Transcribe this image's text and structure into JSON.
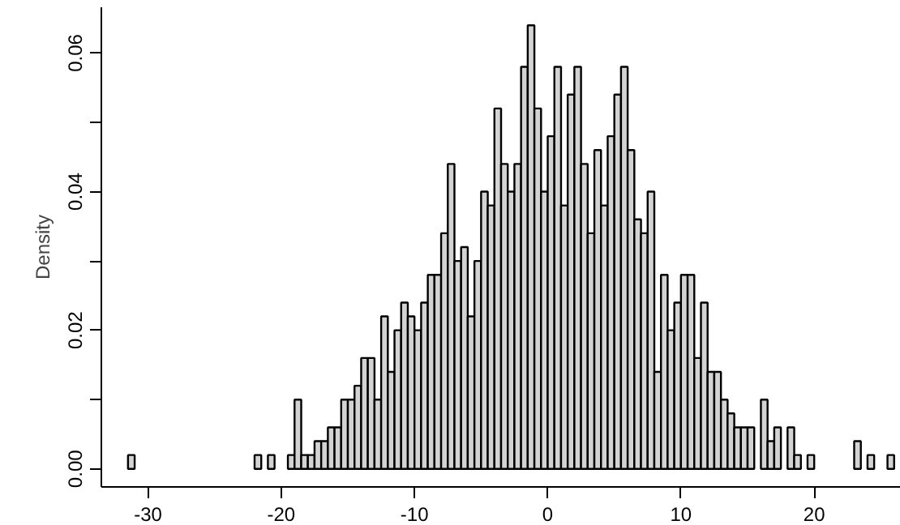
{
  "chart_data": {
    "type": "histogram",
    "ylabel": "Density",
    "color": "#d3d3d3",
    "grid": false,
    "bins": [
      -31.5,
      -31,
      -30.5,
      -30,
      -29.5,
      -29,
      -28.5,
      -28,
      -27.5,
      -27,
      -26.5,
      -26,
      -25.5,
      -25,
      -24.5,
      -24,
      -23.5,
      -23,
      -22.5,
      -22,
      -21.5,
      -21,
      -20.5,
      -20,
      -19.5,
      -19,
      -18.5,
      -18,
      -17.5,
      -17,
      -16.5,
      -16,
      -15.5,
      -15,
      -14.5,
      -14,
      -13.5,
      -13,
      -12.5,
      -12,
      -11.5,
      -11,
      -10.5,
      -10,
      -9.5,
      -9,
      -8.5,
      -8,
      -7.5,
      -7,
      -6.5,
      -6,
      -5.5,
      -5,
      -4.5,
      -4,
      -3.5,
      -3,
      -2.5,
      -2,
      -1.5,
      -1,
      -0.5,
      0,
      0.5,
      1,
      1.5,
      2,
      2.5,
      3,
      3.5,
      4,
      4.5,
      5,
      5.5,
      6,
      6.5,
      7,
      7.5,
      8,
      8.5,
      9,
      9.5,
      10,
      10.5,
      11,
      11.5,
      12,
      12.5,
      13,
      13.5,
      14,
      14.5,
      15,
      15.5,
      16,
      16.5,
      17,
      17.5,
      18,
      18.5,
      19,
      19.5,
      20,
      20.5,
      21,
      21.5,
      22,
      22.5,
      23,
      23.5,
      24,
      24.5,
      25,
      25.5,
      26
    ],
    "values": [
      0.002,
      0,
      0,
      0,
      0,
      0,
      0,
      0,
      0,
      0,
      0,
      0,
      0,
      0,
      0,
      0,
      0,
      0,
      0,
      0.002,
      0,
      0.002,
      0,
      0,
      0.002,
      0.01,
      0.002,
      0.002,
      0.004,
      0.004,
      0.006,
      0.006,
      0.01,
      0.01,
      0.012,
      0.016,
      0.016,
      0.01,
      0.022,
      0.014,
      0.02,
      0.024,
      0.022,
      0.02,
      0.024,
      0.028,
      0.028,
      0.034,
      0.044,
      0.03,
      0.032,
      0.022,
      0.03,
      0.04,
      0.038,
      0.052,
      0.044,
      0.04,
      0.044,
      0.058,
      0.064,
      0.052,
      0.04,
      0.048,
      0.058,
      0.038,
      0.054,
      0.058,
      0.044,
      0.034,
      0.046,
      0.038,
      0.048,
      0.054,
      0.058,
      0.046,
      0.036,
      0.034,
      0.04,
      0.014,
      0.028,
      0.02,
      0.024,
      0.028,
      0.028,
      0.016,
      0.024,
      0.014,
      0.014,
      0.01,
      0.008,
      0.006,
      0.006,
      0.006,
      0,
      0.01,
      0.004,
      0.006,
      0,
      0.006,
      0.002,
      0,
      0.002,
      0,
      0,
      0,
      0,
      0,
      0,
      0.004,
      0,
      0.002,
      0,
      0,
      0.002
    ],
    "xlim": [
      -33.5,
      26.5
    ],
    "ylim": [
      -0.0026,
      0.0666
    ],
    "xticks": [
      -30,
      -20,
      -10,
      0,
      10,
      20
    ],
    "yticks": [
      {
        "value": 0,
        "label": "0.00"
      },
      {
        "value": 0.01,
        "label": null
      },
      {
        "value": 0.02,
        "label": "0.02"
      },
      {
        "value": 0.03,
        "label": null
      },
      {
        "value": 0.04,
        "label": "0.04"
      },
      {
        "value": 0.05,
        "label": null
      },
      {
        "value": 0.06,
        "label": "0.06"
      }
    ]
  }
}
